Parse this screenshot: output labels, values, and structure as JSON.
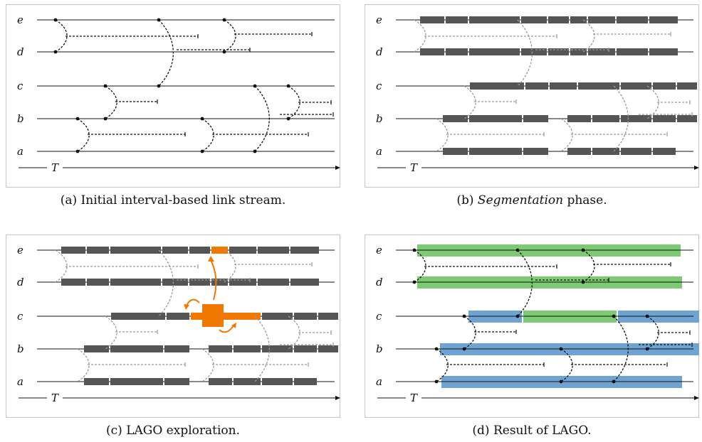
{
  "lane_labels": [
    "e",
    "d",
    "c",
    "b",
    "a"
  ],
  "time_label": "T",
  "captions": {
    "a": {
      "prefix": "(a) Initial interval-based link stream.",
      "italic": "",
      "suffix": ""
    },
    "b": {
      "prefix": "(b) ",
      "italic": "Segmentation",
      "suffix": " phase."
    },
    "c": {
      "prefix": "(c) LAGO exploration.",
      "italic": "",
      "suffix": ""
    },
    "d": {
      "prefix": "(d) Result of LAGO.",
      "italic": "",
      "suffix": ""
    }
  },
  "colors": {
    "segment": "#555555",
    "highlight": "#f07800",
    "group_green": "#7ccb72",
    "group_blue": "#6fa3d2",
    "link_dark": "#111111",
    "link_light": "#999999"
  }
}
